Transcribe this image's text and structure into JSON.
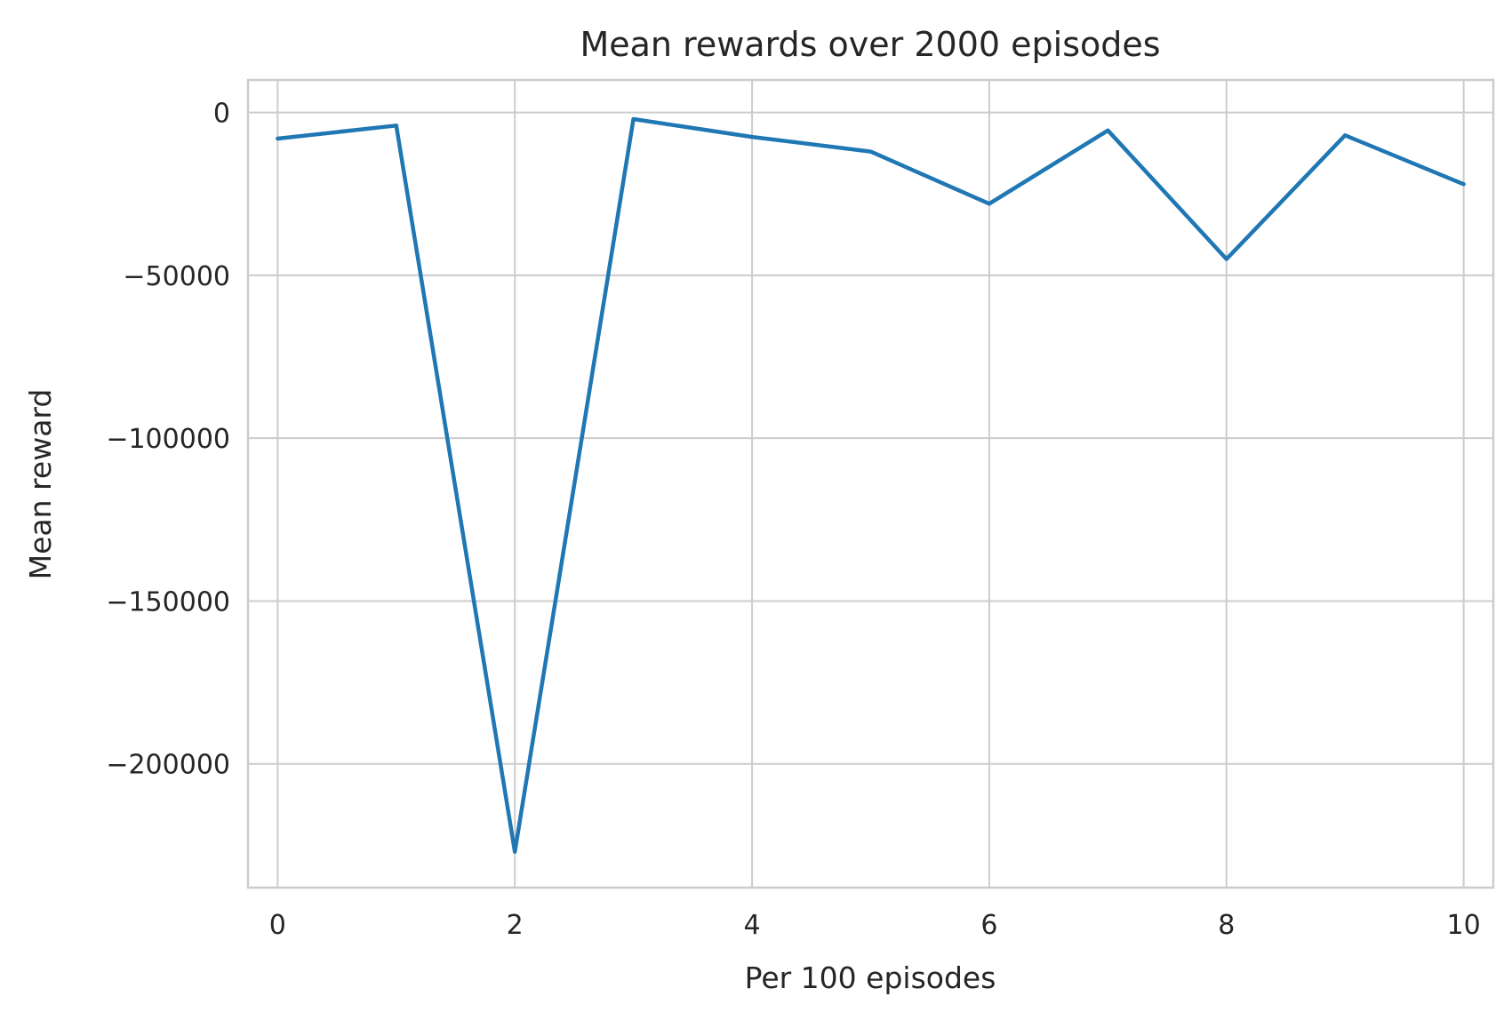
{
  "chart_data": {
    "type": "line",
    "title": "Mean rewards over 2000 episodes",
    "xlabel": "Per 100 episodes",
    "ylabel": "Mean reward",
    "x": [
      0,
      1,
      2,
      3,
      4,
      5,
      6,
      7,
      8,
      9,
      10
    ],
    "series": [
      {
        "values": [
          -8000,
          -4000,
          -227000,
          -2000,
          -7500,
          -12000,
          -28000,
          -5500,
          -45000,
          -7000,
          -22000
        ],
        "color": "#1f77b4"
      }
    ],
    "xlim": [
      -0.25,
      10.25
    ],
    "ylim": [
      -238000,
      10000
    ],
    "xticks": [
      0,
      2,
      4,
      6,
      8,
      10
    ],
    "xtick_labels": [
      "0",
      "2",
      "4",
      "6",
      "8",
      "10"
    ],
    "yticks": [
      0,
      -50000,
      -100000,
      -150000,
      -200000
    ],
    "ytick_labels": [
      "0",
      "−50000",
      "−100000",
      "−150000",
      "−200000"
    ],
    "grid": true,
    "legend": "none"
  }
}
